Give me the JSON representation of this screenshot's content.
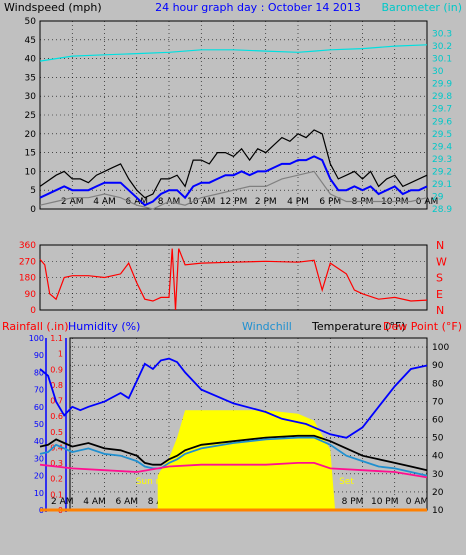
{
  "title": "24 hour graph day : October 14 2013",
  "chart_data": [
    {
      "type": "line",
      "panel": "wind",
      "left_axis_label": "Windspeed (mph)",
      "right_axis_label": "Barometer (in)",
      "left_ylim": [
        0,
        50
      ],
      "left_ticks": [
        "0",
        "5",
        "10",
        "15",
        "20",
        "25",
        "30",
        "35",
        "40",
        "45",
        "50"
      ],
      "right_ylim": [
        28.9,
        30.4
      ],
      "right_ticks": [
        "28.9",
        "29",
        "29.1",
        "29.2",
        "29.3",
        "29.4",
        "29.5",
        "29.6",
        "29.7",
        "29.8",
        "29.9",
        "30",
        "30.1",
        "30.2",
        "30.3"
      ],
      "x_ticks": [
        "2 AM",
        "4 AM",
        "6 AM",
        "8 AM",
        "10 AM",
        "12 PM",
        "2 PM",
        "4 PM",
        "6 PM",
        "8 PM",
        "10 PM",
        "0 AM"
      ],
      "grid": true,
      "colors": {
        "gust": "#000000",
        "avg": "#0000ff",
        "min": "#808080",
        "barometer": "#00e0e0"
      },
      "series": [
        {
          "key": "gust",
          "hours": [
            0,
            1,
            1.5,
            2,
            2.5,
            3,
            3.5,
            4,
            4.5,
            5,
            5.5,
            6,
            6.5,
            7,
            7.5,
            8,
            8.5,
            9,
            9.5,
            10,
            10.5,
            11,
            11.5,
            12,
            12.5,
            13,
            13.5,
            14,
            14.5,
            15,
            15.5,
            16,
            16.5,
            17,
            17.5,
            18,
            18.5,
            19,
            19.5,
            20,
            20.5,
            21,
            21.5,
            22,
            22.5,
            23,
            23.5,
            24
          ],
          "values": [
            6,
            9,
            10,
            8,
            8,
            7,
            9,
            10,
            11,
            12,
            8,
            5,
            3,
            4,
            8,
            8,
            9,
            6,
            13,
            13,
            12,
            15,
            15,
            14,
            16,
            13,
            16,
            15,
            17,
            19,
            18,
            20,
            19,
            21,
            20,
            12,
            8,
            9,
            10,
            8,
            10,
            6,
            8,
            9,
            6,
            7,
            8,
            9
          ]
        },
        {
          "key": "avg",
          "hours": [
            0,
            1,
            1.5,
            2,
            2.5,
            3,
            3.5,
            4,
            4.5,
            5,
            5.5,
            6,
            6.5,
            7,
            7.5,
            8,
            8.5,
            9,
            9.5,
            10,
            10.5,
            11,
            11.5,
            12,
            12.5,
            13,
            13.5,
            14,
            14.5,
            15,
            15.5,
            16,
            16.5,
            17,
            17.5,
            18,
            18.5,
            19,
            19.5,
            20,
            20.5,
            21,
            21.5,
            22,
            22.5,
            23,
            23.5,
            24
          ],
          "values": [
            3,
            5,
            6,
            5,
            5,
            5,
            6,
            7,
            7,
            7,
            5,
            3,
            1,
            2,
            4,
            5,
            5,
            3,
            6,
            7,
            7,
            8,
            9,
            9,
            10,
            9,
            10,
            10,
            11,
            12,
            12,
            13,
            13,
            14,
            13,
            8,
            5,
            5,
            6,
            5,
            6,
            4,
            5,
            6,
            4,
            5,
            5,
            6
          ]
        },
        {
          "key": "min",
          "hours": [
            0,
            1,
            2,
            3,
            4,
            5,
            6,
            7,
            8,
            9,
            10,
            11,
            12,
            13,
            14,
            15,
            16,
            17,
            18,
            19,
            20,
            21,
            22,
            23,
            24
          ],
          "values": [
            1,
            2,
            3,
            3,
            4,
            3,
            1,
            0,
            2,
            1,
            3,
            4,
            5,
            6,
            6,
            8,
            9,
            10,
            4,
            2,
            2,
            2,
            2,
            2,
            3
          ]
        },
        {
          "key": "barometer",
          "hours": [
            0,
            2,
            4,
            6,
            8,
            10,
            12,
            14,
            16,
            17,
            18,
            20,
            22,
            24
          ],
          "values": [
            30.08,
            30.12,
            30.13,
            30.14,
            30.15,
            30.17,
            30.17,
            30.16,
            30.15,
            30.16,
            30.17,
            30.18,
            30.2,
            30.21
          ]
        }
      ]
    },
    {
      "type": "line",
      "panel": "direction",
      "left_ylim": [
        0,
        360
      ],
      "left_ticks": [
        "0",
        "90",
        "180",
        "270",
        "360"
      ],
      "right_labels": [
        "N",
        "W",
        "S",
        "E",
        "N"
      ],
      "x_ticks": [
        "2 AM",
        "4 AM",
        "6 AM",
        "8 AM",
        "10 AM",
        "12 PM",
        "2 PM",
        "4 PM",
        "6 PM",
        "8 PM",
        "10 PM",
        "0 AM"
      ],
      "grid": true,
      "colors": {
        "direction": "#ff0000"
      },
      "series": [
        {
          "key": "direction",
          "hours": [
            0,
            0.3,
            0.6,
            1,
            1.5,
            2,
            3,
            4,
            5,
            5.5,
            6,
            6.5,
            7,
            7.5,
            8,
            8.2,
            8.4,
            8.6,
            9,
            10,
            12,
            14,
            16,
            17,
            17.5,
            18,
            18.5,
            19,
            19.5,
            20,
            21,
            22,
            23,
            24
          ],
          "values": [
            280,
            250,
            90,
            60,
            180,
            190,
            190,
            180,
            200,
            260,
            150,
            60,
            50,
            70,
            70,
            340,
            0,
            340,
            250,
            260,
            265,
            270,
            265,
            275,
            110,
            260,
            230,
            200,
            110,
            90,
            60,
            70,
            50,
            55
          ]
        }
      ]
    },
    {
      "type": "line",
      "panel": "temperature",
      "labels": {
        "rainfall": "Rainfall (.in)",
        "humidity": "Humidity (%)",
        "windchill": "Windchill",
        "temperature": "Temperature (°F)",
        "dewpoint": "Dew Point (°F)"
      },
      "humidity_ylim": [
        0,
        100
      ],
      "humidity_ticks": [
        "0",
        "10",
        "20",
        "30",
        "40",
        "50",
        "60",
        "70",
        "80",
        "90",
        "100"
      ],
      "rain_ylim": [
        0,
        1.1
      ],
      "rain_ticks": [
        "0",
        "0.1",
        "0.2",
        "0.3",
        "0.4",
        "0.5",
        "0.6",
        "0.7",
        "0.8",
        "0.9",
        "1",
        "1.1"
      ],
      "temp_ylim": [
        10,
        105
      ],
      "temp_ticks": [
        "10",
        "20",
        "30",
        "40",
        "50",
        "60",
        "70",
        "80",
        "90",
        "100"
      ],
      "x_ticks": [
        "2 AM",
        "4 AM",
        "6 AM",
        "8 AM",
        "10 AM",
        "12 PM",
        "2 PM",
        "4 PM",
        "6 PM",
        "8 PM",
        "10 PM",
        "0 AM"
      ],
      "annotations": [
        {
          "text": "Sun rise",
          "hour": 7.3
        },
        {
          "text": "Set",
          "hour": 18.3
        }
      ],
      "grid": true,
      "colors": {
        "humidity": "#0000ff",
        "temperature": "#000000",
        "windchill": "#2090d0",
        "dewpoint": "#ff1090",
        "rain": "#ff8000",
        "solar": "#ffff00",
        "rainfall_label": "#ff0000",
        "dewpoint_label": "#ff0000"
      },
      "series": [
        {
          "key": "humidity",
          "hours": [
            0,
            0.5,
            1,
            1.5,
            2,
            2.5,
            3,
            4,
            5,
            5.5,
            6,
            6.5,
            7,
            7.5,
            8,
            8.5,
            9,
            10,
            12,
            14,
            15,
            16,
            16.5,
            17,
            18,
            19,
            20,
            21,
            22,
            23,
            24
          ],
          "values": [
            82,
            78,
            63,
            55,
            60,
            58,
            60,
            63,
            68,
            65,
            75,
            85,
            82,
            87,
            88,
            86,
            80,
            70,
            62,
            57,
            53,
            51,
            50,
            48,
            44,
            42,
            48,
            60,
            72,
            82,
            84
          ]
        },
        {
          "key": "temperature",
          "hours": [
            0,
            0.5,
            1,
            1.5,
            2,
            3,
            4,
            5,
            6,
            6.5,
            7,
            7.5,
            8,
            8.5,
            9,
            10,
            12,
            14,
            16,
            17,
            18,
            19,
            20,
            21,
            22,
            23,
            24
          ],
          "values": [
            45,
            46,
            49,
            47,
            45,
            47,
            44,
            43,
            40,
            36,
            35,
            35,
            38,
            40,
            43,
            46,
            48,
            50,
            51,
            51,
            48,
            44,
            40,
            38,
            36,
            34,
            32
          ]
        },
        {
          "key": "windchill",
          "hours": [
            0,
            0.5,
            1,
            1.5,
            2,
            3,
            4,
            5,
            6,
            6.5,
            7,
            7.5,
            8,
            8.5,
            9,
            10,
            12,
            14,
            16,
            17,
            18,
            19,
            20,
            21,
            22,
            23,
            24
          ],
          "values": [
            41,
            42,
            46,
            44,
            42,
            44,
            41,
            40,
            37,
            34,
            33,
            33,
            36,
            38,
            41,
            44,
            47,
            49,
            50,
            50,
            46,
            40,
            37,
            34,
            33,
            31,
            29
          ]
        },
        {
          "key": "dewpoint",
          "hours": [
            0,
            2,
            4,
            6,
            8,
            10,
            12,
            14,
            16,
            17,
            18,
            20,
            22,
            24
          ],
          "values": [
            35,
            33,
            32,
            31,
            34,
            35,
            35,
            35,
            36,
            36,
            33,
            32,
            31,
            28
          ]
        },
        {
          "key": "rain",
          "hours": [
            0,
            24
          ],
          "values": [
            0,
            0
          ]
        },
        {
          "key": "solar",
          "hours": [
            7.3,
            7.6,
            8,
            8.5,
            9,
            10,
            11,
            12,
            13,
            14,
            15,
            16,
            17,
            18,
            18.3
          ],
          "values": [
            0.2,
            0.25,
            0.3,
            0.42,
            0.58,
            0.58,
            0.58,
            0.58,
            0.58,
            0.58,
            0.57,
            0.56,
            0.52,
            0.35,
            0
          ]
        }
      ]
    }
  ]
}
